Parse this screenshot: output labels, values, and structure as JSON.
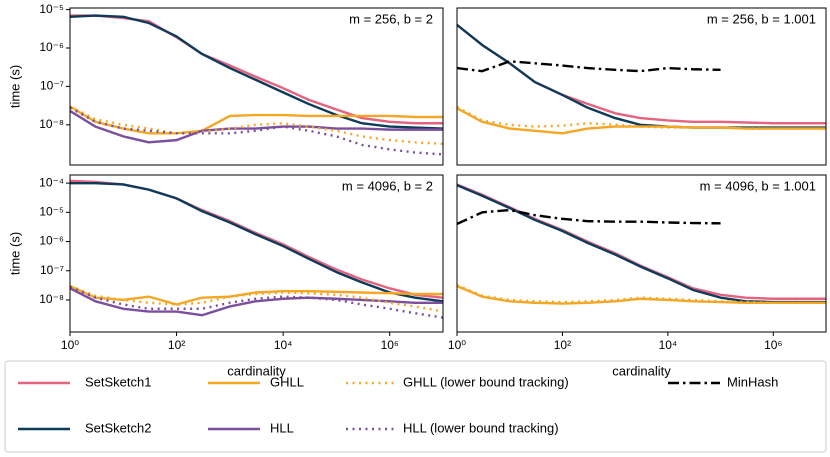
{
  "chart_data": [
    {
      "type": "line",
      "annotation": "m = 256, b = 2",
      "ylabel": "time (s)",
      "xscale": "log",
      "yscale": "log",
      "xlim": [
        1,
        10000000
      ],
      "ylim": [
        9e-10,
        1.1e-05
      ],
      "yticks": [
        {
          "value": 1e-05,
          "label": "10⁻⁵"
        },
        {
          "value": 1e-06,
          "label": "10⁻⁶"
        },
        {
          "value": 1e-07,
          "label": "10⁻⁷"
        },
        {
          "value": 1e-08,
          "label": "10⁻⁸"
        }
      ],
      "x": [
        1,
        3,
        10,
        30,
        100,
        300,
        1000,
        3000,
        10000,
        30000,
        100000,
        300000,
        1000000,
        3000000,
        10000000
      ],
      "series": [
        {
          "name": "SetSketch1",
          "color": "#e5637f",
          "style": "solid",
          "values": [
            7e-06,
            7e-06,
            6e-06,
            5e-06,
            1.9e-06,
            7e-07,
            3.5e-07,
            1.8e-07,
            9e-08,
            4.5e-08,
            2.5e-08,
            1.5e-08,
            1.2e-08,
            1.1e-08,
            1.1e-08
          ]
        },
        {
          "name": "SetSketch2",
          "color": "#0d3b5a",
          "style": "solid",
          "values": [
            6.5e-06,
            7e-06,
            6.5e-06,
            4.5e-06,
            2e-06,
            7e-07,
            3e-07,
            1.5e-07,
            7e-08,
            3.5e-08,
            1.8e-08,
            1.1e-08,
            9e-09,
            8.5e-09,
            8e-09
          ]
        },
        {
          "name": "GHLL",
          "color": "#f5a623",
          "style": "solid",
          "values": [
            3e-08,
            1.2e-08,
            8e-09,
            6e-09,
            6e-09,
            7e-09,
            1.7e-08,
            1.8e-08,
            1.8e-08,
            1.7e-08,
            1.7e-08,
            1.7e-08,
            1.7e-08,
            1.6e-08,
            1.6e-08
          ]
        },
        {
          "name": "HLL",
          "color": "#7b4f9d",
          "style": "solid",
          "values": [
            2.3e-08,
            9e-09,
            5e-09,
            3.5e-09,
            4e-09,
            7e-09,
            8e-09,
            8e-09,
            9e-09,
            9e-09,
            8e-09,
            8e-09,
            7.5e-09,
            7.5e-09,
            7.5e-09
          ]
        },
        {
          "name": "GHLL (lower bound tracking)",
          "color": "#f5a623",
          "style": "dotted",
          "values": [
            3e-08,
            1.4e-08,
            1e-08,
            8e-09,
            6e-09,
            6.5e-09,
            8e-09,
            1e-08,
            1.1e-08,
            9e-09,
            7e-09,
            5e-09,
            4e-09,
            3.5e-09,
            3.2e-09
          ]
        },
        {
          "name": "HLL (lower bound tracking)",
          "color": "#7b4f9d",
          "style": "dotted",
          "values": [
            2.8e-08,
            1.2e-08,
            8e-09,
            7e-09,
            6e-09,
            6e-09,
            6e-09,
            7e-09,
            9e-09,
            7e-09,
            5e-09,
            3e-09,
            2.3e-09,
            1.9e-09,
            1.7e-09
          ]
        }
      ]
    },
    {
      "type": "line",
      "annotation": "m = 256, b = 1.001",
      "xscale": "log",
      "yscale": "log",
      "xlim": [
        1,
        10000000
      ],
      "ylim": [
        9e-10,
        1.1e-05
      ],
      "x": [
        1,
        3,
        10,
        30,
        100,
        300,
        1000,
        3000,
        10000,
        30000,
        100000,
        300000,
        1000000,
        3000000,
        10000000
      ],
      "series": [
        {
          "name": "SetSketch1",
          "color": "#e5637f",
          "style": "solid",
          "values": [
            4e-06,
            1.2e-06,
            4e-07,
            1.3e-07,
            6e-08,
            3.5e-08,
            2e-08,
            1.5e-08,
            1.3e-08,
            1.2e-08,
            1.2e-08,
            1.15e-08,
            1.1e-08,
            1.1e-08,
            1.1e-08
          ]
        },
        {
          "name": "SetSketch2",
          "color": "#0d3b5a",
          "style": "solid",
          "values": [
            4e-06,
            1.2e-06,
            4e-07,
            1.3e-07,
            6e-08,
            2.8e-08,
            1.5e-08,
            1e-08,
            9e-09,
            8.5e-09,
            8.5e-09,
            8.5e-09,
            8.5e-09,
            8.5e-09,
            8.5e-09
          ]
        },
        {
          "name": "GHLL",
          "color": "#f5a623",
          "style": "solid",
          "values": [
            2.7e-08,
            1.2e-08,
            8e-09,
            7e-09,
            6e-09,
            8e-09,
            9e-09,
            9e-09,
            9e-09,
            8.5e-09,
            8.5e-09,
            8e-09,
            8e-09,
            8e-09,
            8e-09
          ]
        },
        {
          "name": "GHLL (lower bound tracking)",
          "color": "#f5a623",
          "style": "dotted",
          "values": [
            2.9e-08,
            1.3e-08,
            1e-08,
            9e-09,
            9.5e-09,
            1.1e-08,
            1e-08,
            9e-09,
            8.5e-09,
            8.5e-09,
            8.5e-09,
            8e-09,
            8e-09,
            8e-09,
            8e-09
          ]
        },
        {
          "name": "MinHash",
          "color": "#000000",
          "style": "dashdot",
          "values": [
            3e-07,
            2.5e-07,
            4.5e-07,
            4e-07,
            3.5e-07,
            3e-07,
            2.7e-07,
            2.5e-07,
            3e-07,
            2.8e-07,
            2.7e-07,
            null,
            null,
            null,
            null
          ]
        }
      ]
    },
    {
      "type": "line",
      "annotation": "m = 4096, b = 2",
      "ylabel": "time (s)",
      "xlabel": "cardinality",
      "xscale": "log",
      "yscale": "log",
      "xlim": [
        1,
        10000000
      ],
      "ylim": [
        8e-10,
        0.00019
      ],
      "xticks": [
        {
          "value": 1,
          "label": "10⁰"
        },
        {
          "value": 100,
          "label": "10²"
        },
        {
          "value": 10000,
          "label": "10⁴"
        },
        {
          "value": 1000000,
          "label": "10⁶"
        }
      ],
      "yticks": [
        {
          "value": 0.0001,
          "label": "10⁻⁴"
        },
        {
          "value": 1e-05,
          "label": "10⁻⁵"
        },
        {
          "value": 1e-06,
          "label": "10⁻⁶"
        },
        {
          "value": 1e-07,
          "label": "10⁻⁷"
        },
        {
          "value": 1e-08,
          "label": "10⁻⁸"
        }
      ],
      "x": [
        1,
        3,
        10,
        30,
        100,
        300,
        1000,
        3000,
        10000,
        30000,
        100000,
        300000,
        1000000,
        3000000,
        10000000
      ],
      "series": [
        {
          "name": "SetSketch1",
          "color": "#e5637f",
          "style": "solid",
          "values": [
            0.00012,
            0.00011,
            9e-05,
            6e-05,
            3e-05,
            1.2e-05,
            5e-06,
            2e-06,
            8e-07,
            3e-07,
            1.1e-07,
            5e-08,
            2.5e-08,
            1.5e-08,
            1.2e-08
          ]
        },
        {
          "name": "SetSketch2",
          "color": "#0d3b5a",
          "style": "solid",
          "values": [
            0.0001,
            0.0001,
            9e-05,
            6e-05,
            3e-05,
            1.1e-05,
            4.5e-06,
            1.8e-06,
            7e-07,
            2.6e-07,
            9e-08,
            4e-08,
            1.8e-08,
            1.2e-08,
            9e-09
          ]
        },
        {
          "name": "GHLL",
          "color": "#f5a623",
          "style": "solid",
          "values": [
            3e-08,
            1.2e-08,
            1e-08,
            1.3e-08,
            7e-09,
            1.2e-08,
            1.3e-08,
            1.8e-08,
            2e-08,
            2e-08,
            1.9e-08,
            1.8e-08,
            1.7e-08,
            1.6e-08,
            1.6e-08
          ]
        },
        {
          "name": "HLL",
          "color": "#7b4f9d",
          "style": "solid",
          "values": [
            2.5e-08,
            9e-09,
            5e-09,
            4e-09,
            4e-09,
            3e-09,
            6e-09,
            9e-09,
            1.1e-08,
            1.2e-08,
            1.1e-08,
            1e-08,
            9e-09,
            8e-09,
            8e-09
          ]
        },
        {
          "name": "GHLL (lower bound tracking)",
          "color": "#f5a623",
          "style": "dotted",
          "values": [
            3e-08,
            1.4e-08,
            1e-08,
            8e-09,
            7e-09,
            8e-09,
            1.3e-08,
            1.6e-08,
            1.8e-08,
            1.7e-08,
            1.5e-08,
            1.2e-08,
            8e-09,
            6e-09,
            4e-09
          ]
        },
        {
          "name": "HLL (lower bound tracking)",
          "color": "#7b4f9d",
          "style": "dotted",
          "values": [
            2.8e-08,
            1.2e-08,
            7e-09,
            5e-09,
            5e-09,
            5e-09,
            8e-09,
            1.1e-08,
            1.3e-08,
            1.2e-08,
            1e-08,
            7e-09,
            5e-09,
            3.5e-09,
            2.5e-09
          ]
        }
      ]
    },
    {
      "type": "line",
      "annotation": "m = 4096, b = 1.001",
      "xlabel": "cardinality",
      "xscale": "log",
      "yscale": "log",
      "xlim": [
        1,
        10000000
      ],
      "ylim": [
        8e-10,
        0.00019
      ],
      "xticks": [
        {
          "value": 1,
          "label": "10⁰"
        },
        {
          "value": 100,
          "label": "10²"
        },
        {
          "value": 10000,
          "label": "10⁴"
        },
        {
          "value": 1000000,
          "label": "10⁶"
        }
      ],
      "x": [
        1,
        3,
        10,
        30,
        100,
        300,
        1000,
        3000,
        10000,
        30000,
        100000,
        300000,
        1000000,
        3000000,
        10000000
      ],
      "series": [
        {
          "name": "SetSketch1",
          "color": "#e5637f",
          "style": "solid",
          "values": [
            9e-05,
            4e-05,
            1.5e-05,
            6e-06,
            2.5e-06,
            1e-06,
            4e-07,
            1.5e-07,
            6e-08,
            2.5e-08,
            1.5e-08,
            1.2e-08,
            1.1e-08,
            1.1e-08,
            1.1e-08
          ]
        },
        {
          "name": "SetSketch2",
          "color": "#0d3b5a",
          "style": "solid",
          "values": [
            8.5e-05,
            3.7e-05,
            1.4e-05,
            5.5e-06,
            2.3e-06,
            9e-07,
            3.6e-07,
            1.4e-07,
            5.5e-08,
            2.2e-08,
            1.2e-08,
            9e-09,
            8.5e-09,
            8.5e-09,
            8.5e-09
          ]
        },
        {
          "name": "GHLL",
          "color": "#f5a623",
          "style": "solid",
          "values": [
            3e-08,
            1.3e-08,
            9e-09,
            8e-09,
            7.5e-09,
            8e-09,
            9e-09,
            1.1e-08,
            1e-08,
            9e-09,
            8.5e-09,
            8e-09,
            8e-09,
            8e-09,
            8e-09
          ]
        },
        {
          "name": "GHLL (lower bound tracking)",
          "color": "#f5a623",
          "style": "dotted",
          "values": [
            3.2e-08,
            1.4e-08,
            1e-08,
            9e-09,
            8.5e-09,
            9e-09,
            1e-08,
            1.2e-08,
            1.1e-08,
            1e-08,
            9e-09,
            8.5e-09,
            8e-09,
            8e-09,
            8e-09
          ]
        },
        {
          "name": "MinHash",
          "color": "#000000",
          "style": "dashdot",
          "values": [
            4e-06,
            1e-05,
            1.2e-05,
            8e-06,
            6e-06,
            5e-06,
            4.8e-06,
            4.8e-06,
            4.5e-06,
            4.3e-06,
            4.2e-06,
            null,
            null,
            null,
            null
          ]
        }
      ]
    }
  ]
}
